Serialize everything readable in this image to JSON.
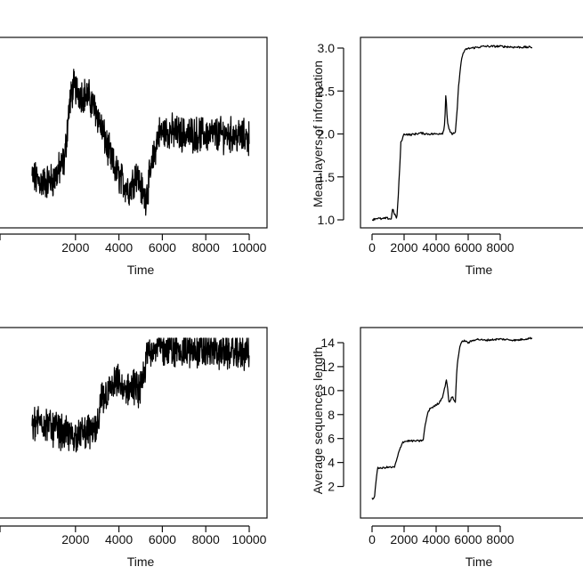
{
  "colors": {
    "line": "#000000",
    "axis": "#111111",
    "background": "#ffffff"
  },
  "chart_data": [
    {
      "type": "line",
      "xlabel": "Time",
      "ylabel": "",
      "xlim": [
        0,
        10000
      ],
      "xticks": [
        "2000",
        "4000",
        "6000",
        "8000",
        "10000"
      ],
      "yticks": [],
      "grid": false,
      "style": "noisy",
      "x": [
        0,
        500,
        1000,
        1500,
        1700,
        1900,
        2200,
        2600,
        3000,
        3400,
        3800,
        4200,
        4500,
        4800,
        5000,
        5200,
        5500,
        5800,
        6200,
        7000,
        8000,
        9000,
        10000
      ],
      "series": [
        {
          "values": [
            0.25,
            0.22,
            0.24,
            0.35,
            0.65,
            0.78,
            0.74,
            0.72,
            0.62,
            0.45,
            0.3,
            0.22,
            0.18,
            0.28,
            0.2,
            0.12,
            0.3,
            0.5,
            0.52,
            0.5,
            0.5,
            0.5,
            0.48
          ]
        }
      ]
    },
    {
      "type": "line",
      "xlabel": "Time",
      "ylabel": "Mean layers of information",
      "xlim": [
        0,
        10000
      ],
      "ylim": [
        1.0,
        3.0
      ],
      "xticks": [
        "0",
        "2000",
        "4000",
        "6000",
        "8000"
      ],
      "yticks": [
        "1.0",
        "1.5",
        "2.0",
        "2.5",
        "3.0"
      ],
      "grid": false,
      "x": [
        0,
        300,
        600,
        900,
        1200,
        1250,
        1300,
        1350,
        1450,
        1550,
        1650,
        1800,
        2000,
        2400,
        3000,
        3500,
        4000,
        4400,
        4500,
        4550,
        4600,
        4650,
        4700,
        4800,
        5000,
        5200,
        5300,
        5400,
        5500,
        5600,
        5700,
        5900,
        6200,
        7000,
        8000,
        9000,
        10000
      ],
      "series": [
        {
          "values": [
            1.0,
            1.02,
            1.01,
            1.02,
            1.01,
            1.08,
            1.16,
            1.08,
            1.05,
            1.02,
            1.32,
            1.9,
            2.0,
            1.99,
            2.01,
            2.0,
            2.0,
            2.01,
            2.05,
            2.2,
            2.45,
            2.35,
            2.15,
            2.05,
            2.0,
            2.01,
            2.25,
            2.55,
            2.75,
            2.88,
            2.95,
            2.99,
            3.0,
            3.02,
            3.02,
            3.01,
            3.01
          ]
        }
      ]
    },
    {
      "type": "line",
      "xlabel": "Time",
      "ylabel": "",
      "xlim": [
        0,
        10000
      ],
      "xticks": [
        "2000",
        "4000",
        "6000",
        "8000",
        "10000"
      ],
      "yticks": [],
      "grid": false,
      "style": "noisy",
      "x": [
        0,
        500,
        1000,
        1500,
        2000,
        2500,
        3000,
        3100,
        3200,
        3600,
        4000,
        4200,
        4600,
        5000,
        5200,
        5300,
        5500,
        6000,
        7000,
        8000,
        9000,
        10000
      ],
      "series": [
        {
          "values": [
            0.5,
            0.52,
            0.48,
            0.45,
            0.43,
            0.46,
            0.46,
            0.55,
            0.65,
            0.7,
            0.75,
            0.68,
            0.72,
            0.7,
            0.8,
            0.92,
            0.95,
            0.94,
            0.93,
            0.93,
            0.92,
            0.92
          ]
        }
      ]
    },
    {
      "type": "line",
      "xlabel": "Time",
      "ylabel": "Average sequences length",
      "xlim": [
        0,
        10000
      ],
      "ylim": [
        1,
        14
      ],
      "xticks": [
        "0",
        "2000",
        "4000",
        "6000",
        "8000"
      ],
      "yticks": [
        "2",
        "4",
        "6",
        "8",
        "10",
        "12",
        "14"
      ],
      "grid": false,
      "x": [
        0,
        150,
        250,
        350,
        500,
        900,
        1400,
        1600,
        1700,
        1900,
        2200,
        2600,
        3000,
        3200,
        3300,
        3450,
        3600,
        3900,
        4200,
        4400,
        4500,
        4650,
        4800,
        5000,
        5200,
        5300,
        5400,
        5500,
        5700,
        6000,
        6500,
        7000,
        8000,
        9000,
        10000
      ],
      "series": [
        {
          "values": [
            1.0,
            1.0,
            2.5,
            3.6,
            3.5,
            3.6,
            3.6,
            4.5,
            5.0,
            5.7,
            5.8,
            5.8,
            5.8,
            5.9,
            7.0,
            8.0,
            8.5,
            8.7,
            9.0,
            9.5,
            10.0,
            11.0,
            9.0,
            9.5,
            9.0,
            12.0,
            13.0,
            13.8,
            14.2,
            14.0,
            14.3,
            14.2,
            14.3,
            14.2,
            14.4
          ]
        }
      ]
    }
  ]
}
